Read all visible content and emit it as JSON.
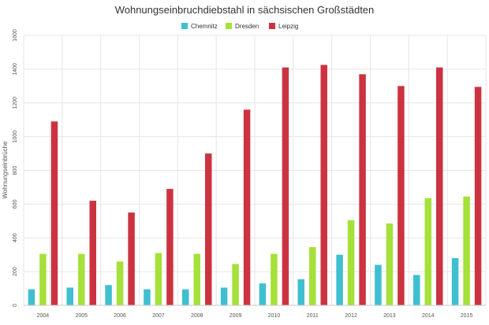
{
  "chart_data": {
    "type": "bar",
    "title": "Wohnungseinbruchdiebstahl in sächsischen Großstädten",
    "xlabel": "",
    "ylabel": "Wohnungseinbrüche",
    "ylim": [
      0,
      1600
    ],
    "yticks": [
      0,
      200,
      400,
      600,
      800,
      1000,
      1200,
      1400,
      1600
    ],
    "grid": true,
    "legend_position": "top-center",
    "categories": [
      "2004",
      "2005",
      "2006",
      "2007",
      "2008",
      "2009",
      "2010",
      "2011",
      "2012",
      "2013",
      "2014",
      "2015"
    ],
    "series": [
      {
        "name": "Chemnitz",
        "color": "#3fbfcf",
        "values": [
          95,
          105,
          120,
          95,
          95,
          105,
          130,
          155,
          300,
          240,
          180,
          280
        ]
      },
      {
        "name": "Dresden",
        "color": "#a6e03a",
        "values": [
          305,
          305,
          260,
          310,
          305,
          245,
          305,
          345,
          505,
          485,
          635,
          645
        ]
      },
      {
        "name": "Leipzig",
        "color": "#cc3340",
        "values": [
          1090,
          620,
          550,
          690,
          900,
          1160,
          1410,
          1425,
          1370,
          1300,
          1410,
          1295
        ]
      }
    ]
  }
}
